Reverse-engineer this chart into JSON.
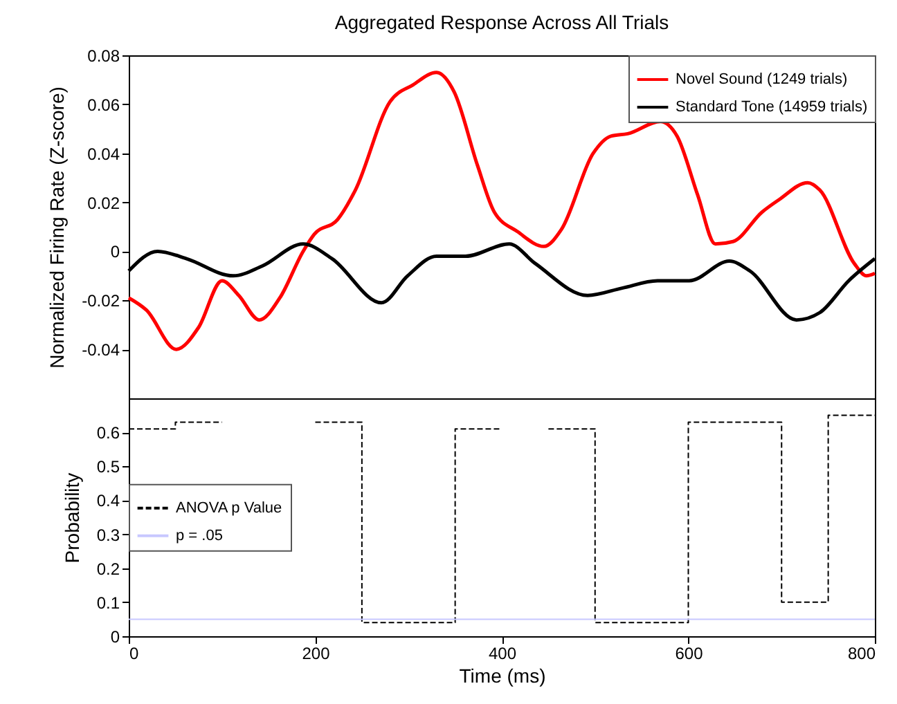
{
  "chart_data": [
    {
      "type": "line",
      "title": "Aggregated Response Across All Trials",
      "ylabel": "Normalized Firing Rate (Z-score)",
      "xlim": [
        0,
        800
      ],
      "xticks": [
        0,
        200,
        400,
        600,
        800
      ],
      "ylim": [
        -0.06,
        0.08
      ],
      "yticks": [
        -0.04,
        -0.02,
        {
          "value": 0,
          "label": "0"
        },
        0.02,
        0.04,
        0.06,
        0.08
      ],
      "tick_labels": "y",
      "legend": "top right",
      "grid": false,
      "series": [
        {
          "name": "Novel Sound (1249 trials)",
          "color": "#ff0000",
          "x": [
            0,
            19,
            51,
            75,
            100,
            118,
            140,
            162,
            187,
            199,
            224,
            243,
            280,
            305,
            330,
            349,
            374,
            392,
            417,
            445,
            464,
            498,
            517,
            535,
            570,
            588,
            610,
            629,
            648,
            679,
            697,
            728,
            741,
            778,
            791,
            800
          ],
          "values": [
            -0.019,
            -0.024,
            -0.04,
            -0.031,
            -0.012,
            -0.018,
            -0.028,
            -0.019,
            0.0,
            0.007,
            0.013,
            0.025,
            0.061,
            0.068,
            0.073,
            0.065,
            0.035,
            0.016,
            0.008,
            0.002,
            0.009,
            0.04,
            0.047,
            0.048,
            0.053,
            0.047,
            0.023,
            0.003,
            0.004,
            0.016,
            0.021,
            0.028,
            0.025,
            -0.005,
            -0.01,
            -0.009
          ]
        },
        {
          "name": "Standard Tone (14959 trials)",
          "color": "#000000",
          "x": [
            0,
            31,
            62,
            112,
            143,
            187,
            218,
            271,
            299,
            330,
            361,
            408,
            436,
            492,
            529,
            567,
            601,
            644,
            666,
            716,
            741,
            772,
            800
          ],
          "values": [
            -0.008,
            0.0,
            -0.003,
            -0.01,
            -0.006,
            0.003,
            -0.003,
            -0.021,
            -0.01,
            -0.002,
            -0.002,
            0.003,
            -0.005,
            -0.018,
            -0.015,
            -0.012,
            -0.012,
            -0.004,
            -0.008,
            -0.028,
            -0.025,
            -0.012,
            -0.003
          ]
        }
      ]
    },
    {
      "type": "step",
      "xlabel": "Time (ms)",
      "ylabel": "Probability",
      "xlim": [
        0,
        800
      ],
      "xticks": [
        0,
        200,
        400,
        600,
        800
      ],
      "ylim": [
        0,
        0.7
      ],
      "yticks": [
        {
          "value": 0,
          "label": "0"
        },
        0.1,
        0.2,
        0.3,
        0.4,
        0.5,
        0.6
      ],
      "legend": "left",
      "grid": false,
      "line_style": "dashed",
      "series": [
        {
          "name": "ANOVA p Value",
          "color": "#000000",
          "x": [
            0,
            50,
            100,
            200,
            250,
            350,
            400,
            450,
            500,
            600,
            700,
            750,
            800
          ],
          "values": [
            0.61,
            0.63,
            null,
            0.63,
            0.04,
            0.61,
            null,
            0.61,
            0.04,
            0.63,
            0.1,
            0.65,
            0.65
          ]
        }
      ],
      "ref_lines": [
        {
          "axis": "y",
          "value": 0.05,
          "label": "p = .05",
          "color": "#c8c8ff"
        }
      ]
    }
  ]
}
